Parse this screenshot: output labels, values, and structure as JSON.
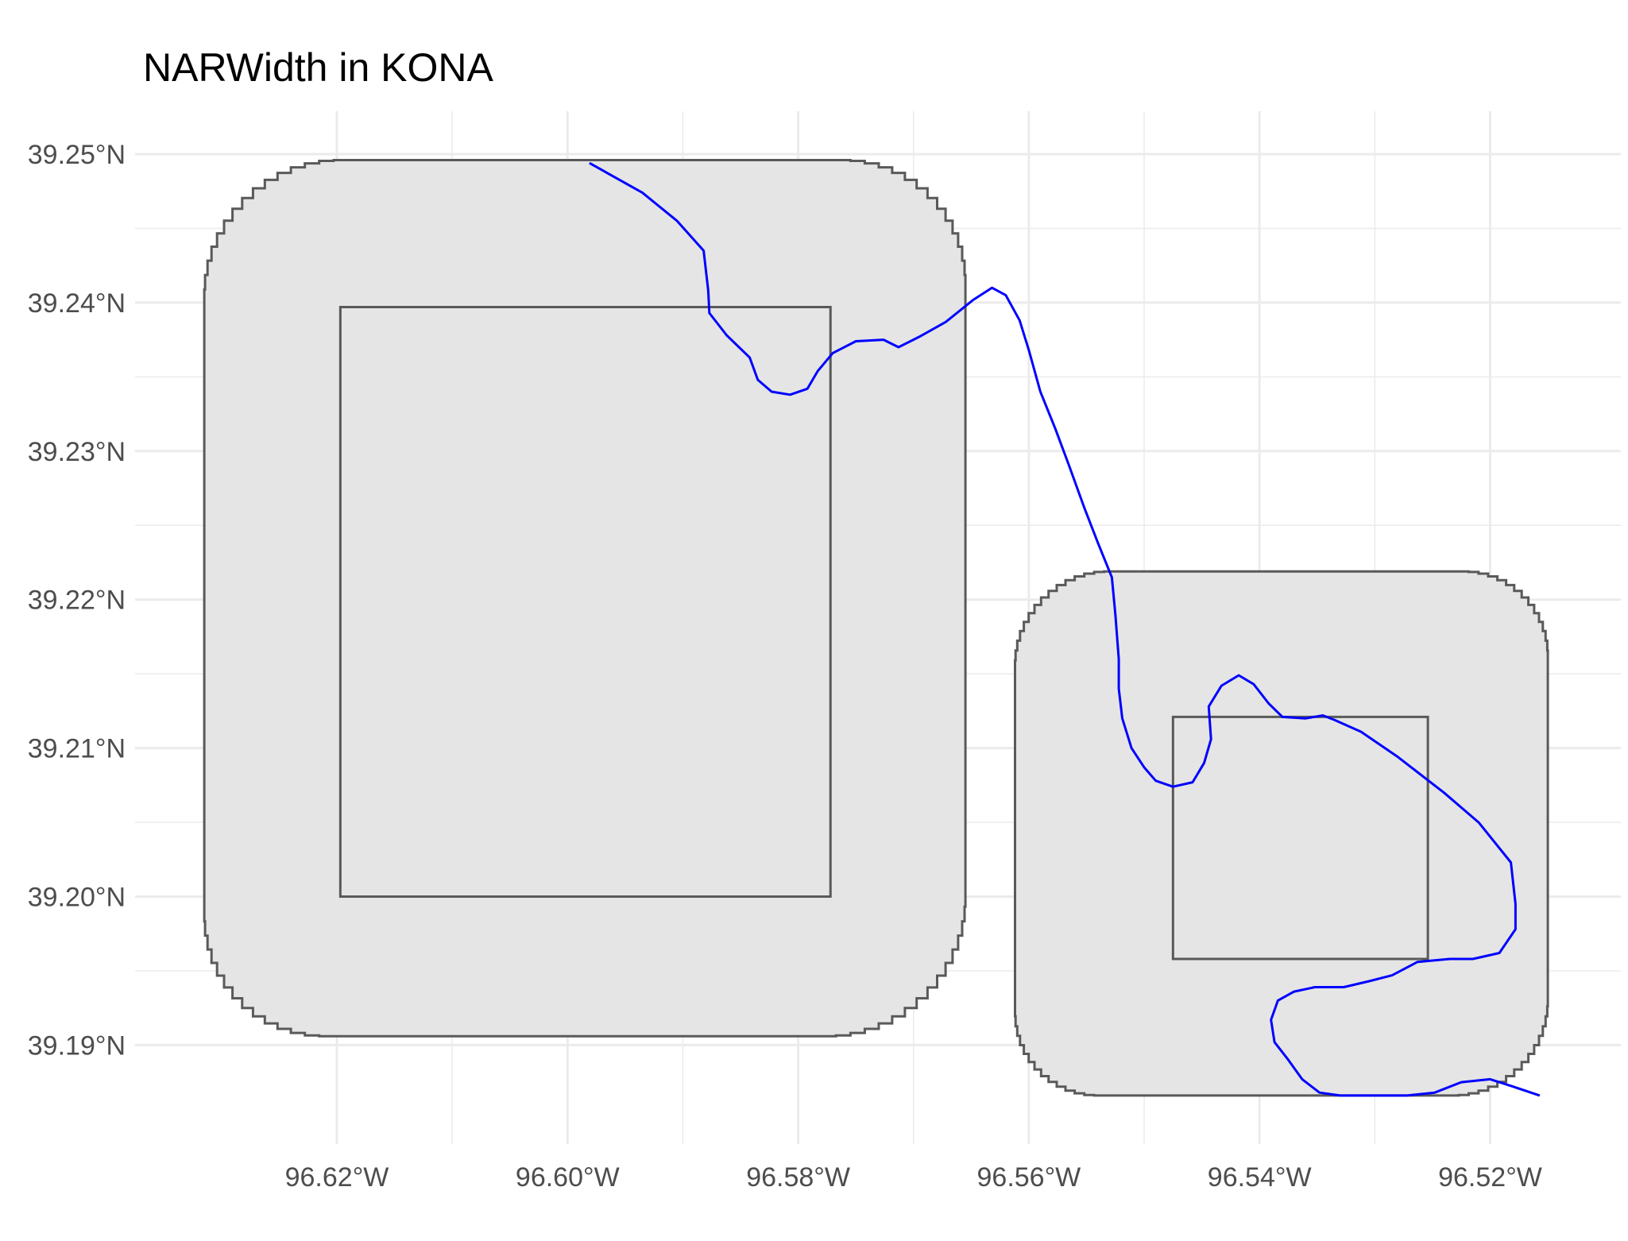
{
  "title": "NARWidth in KONA",
  "y_ticks": [
    "39.25°N",
    "39.24°N",
    "39.23°N",
    "39.22°N",
    "39.21°N",
    "39.20°N",
    "39.19°N"
  ],
  "x_ticks": [
    "96.62°W",
    "96.60°W",
    "96.58°W",
    "96.56°W",
    "96.54°W",
    "96.52°W"
  ],
  "colors": {
    "background": "#ffffff",
    "grid": "#ebebeb",
    "buffer_fill": "#e5e5e5",
    "outline": "#595959",
    "river": "#0000ff"
  },
  "chart_data": {
    "type": "map",
    "title": "NARWidth in KONA",
    "xlim": [
      -96.636,
      -96.512
    ],
    "ylim": [
      39.184,
      39.252
    ],
    "x_ticks": [
      -96.62,
      -96.6,
      -96.58,
      -96.56,
      -96.54,
      -96.52
    ],
    "y_ticks": [
      39.25,
      39.24,
      39.23,
      39.22,
      39.21,
      39.2,
      39.19
    ],
    "grid": true,
    "layers": [
      {
        "kind": "buffer-polygon",
        "bounds": {
          "west": -96.6315,
          "east": -96.5655,
          "south": 39.1906,
          "north": 39.2496
        }
      },
      {
        "kind": "buffer-polygon",
        "bounds": {
          "west": -96.5612,
          "east": -96.515,
          "south": 39.1866,
          "north": 39.2219
        }
      },
      {
        "kind": "box",
        "bounds": {
          "west": -96.6197,
          "east": -96.5772,
          "south": 39.2,
          "north": 39.2397
        }
      },
      {
        "kind": "box",
        "bounds": {
          "west": -96.5475,
          "east": -96.5254,
          "south": 39.1958,
          "north": 39.2121
        }
      },
      {
        "kind": "river-centerline",
        "points": [
          [
            -96.5981,
            39.2494
          ],
          [
            -96.5935,
            39.2474
          ],
          [
            -96.5905,
            39.2455
          ],
          [
            -96.5882,
            39.2435
          ],
          [
            -96.5878,
            39.2408
          ],
          [
            -96.5877,
            39.2393
          ],
          [
            -96.5862,
            39.2378
          ],
          [
            -96.5842,
            39.2363
          ],
          [
            -96.5835,
            39.2348
          ],
          [
            -96.5823,
            39.234
          ],
          [
            -96.5807,
            39.2338
          ],
          [
            -96.5792,
            39.2342
          ],
          [
            -96.5783,
            39.2354
          ],
          [
            -96.577,
            39.2366
          ],
          [
            -96.575,
            39.2374
          ],
          [
            -96.5726,
            39.2375
          ],
          [
            -96.5713,
            39.237
          ],
          [
            -96.5695,
            39.2377
          ],
          [
            -96.5672,
            39.2387
          ],
          [
            -96.5648,
            39.2402
          ],
          [
            -96.5632,
            39.241
          ],
          [
            -96.562,
            39.2405
          ],
          [
            -96.5608,
            39.2388
          ],
          [
            -96.56,
            39.2368
          ],
          [
            -96.559,
            39.234
          ],
          [
            -96.5577,
            39.2315
          ],
          [
            -96.5565,
            39.229
          ],
          [
            -96.5552,
            39.2262
          ],
          [
            -96.554,
            39.2238
          ],
          [
            -96.5528,
            39.2215
          ],
          [
            -96.5525,
            39.219
          ],
          [
            -96.5522,
            39.216
          ],
          [
            -96.5522,
            39.214
          ],
          [
            -96.5519,
            39.212
          ],
          [
            -96.5511,
            39.21
          ],
          [
            -96.55,
            39.2087
          ],
          [
            -96.549,
            39.2078
          ],
          [
            -96.5475,
            39.2074
          ],
          [
            -96.5458,
            39.2077
          ],
          [
            -96.5448,
            39.209
          ],
          [
            -96.5442,
            39.2106
          ],
          [
            -96.5444,
            39.2128
          ],
          [
            -96.5433,
            39.2142
          ],
          [
            -96.5418,
            39.2149
          ],
          [
            -96.5405,
            39.2143
          ],
          [
            -96.5392,
            39.213
          ],
          [
            -96.538,
            39.2121
          ],
          [
            -96.536,
            39.212
          ],
          [
            -96.5345,
            39.2122
          ],
          [
            -96.5335,
            39.2119
          ],
          [
            -96.5312,
            39.2111
          ],
          [
            -96.528,
            39.2094
          ],
          [
            -96.524,
            39.207
          ],
          [
            -96.521,
            39.205
          ],
          [
            -96.5182,
            39.2023
          ],
          [
            -96.5178,
            39.1995
          ],
          [
            -96.5178,
            39.1978
          ],
          [
            -96.5192,
            39.1962
          ],
          [
            -96.5215,
            39.1958
          ],
          [
            -96.5235,
            39.1958
          ],
          [
            -96.5263,
            39.1956
          ],
          [
            -96.5285,
            39.1947
          ],
          [
            -96.5305,
            39.1943
          ],
          [
            -96.5327,
            39.1939
          ],
          [
            -96.5352,
            39.1939
          ],
          [
            -96.537,
            39.1936
          ],
          [
            -96.5384,
            39.193
          ],
          [
            -96.539,
            39.1917
          ],
          [
            -96.5387,
            39.1902
          ],
          [
            -96.5375,
            39.189
          ],
          [
            -96.5363,
            39.1877
          ],
          [
            -96.5348,
            39.1868
          ],
          [
            -96.533,
            39.1866
          ],
          [
            -96.531,
            39.1866
          ],
          [
            -96.529,
            39.1866
          ],
          [
            -96.5272,
            39.1866
          ],
          [
            -96.5248,
            39.1868
          ],
          [
            -96.5225,
            39.1875
          ],
          [
            -96.52,
            39.1877
          ],
          [
            -96.518,
            39.1872
          ],
          [
            -96.5157,
            39.1866
          ]
        ]
      }
    ]
  }
}
